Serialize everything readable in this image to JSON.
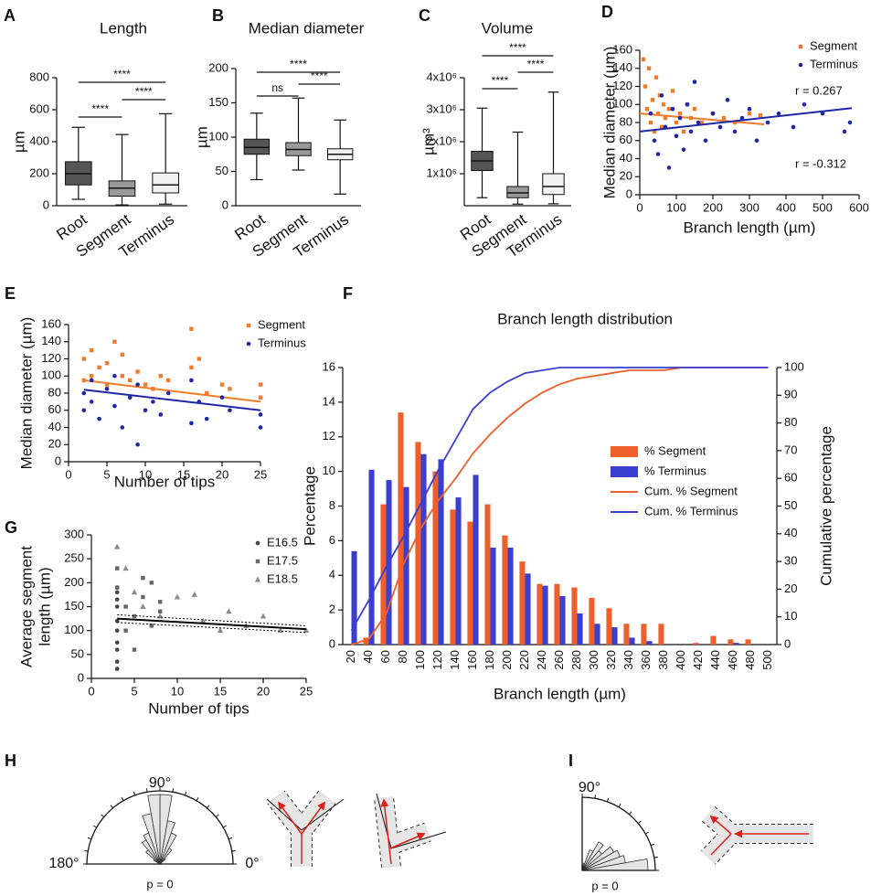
{
  "chart_data": [
    {
      "type": "box",
      "panel": "A",
      "title": "Length",
      "ylabel": "µm",
      "ylim": [
        0,
        800
      ],
      "yticks": [
        0,
        200,
        400,
        600,
        800
      ],
      "boxes": [
        {
          "name": "Root",
          "min": 40,
          "q1": 130,
          "median": 200,
          "q3": 275,
          "max": 490,
          "color": "#555555"
        },
        {
          "name": "Segment",
          "min": 5,
          "q1": 60,
          "median": 110,
          "q3": 155,
          "max": 445,
          "color": "#9a9a9a"
        },
        {
          "name": "Terminus",
          "min": 10,
          "q1": 80,
          "median": 130,
          "q3": 205,
          "max": 575,
          "color": "#f2f2f2"
        }
      ],
      "comparisons": [
        {
          "pair": [
            0,
            1
          ],
          "label": "****"
        },
        {
          "pair": [
            1,
            2
          ],
          "label": "****"
        },
        {
          "pair": [
            0,
            2
          ],
          "label": "****"
        }
      ]
    },
    {
      "type": "box",
      "panel": "B",
      "title": "Median diameter",
      "ylabel": "µm",
      "ylim": [
        0,
        200
      ],
      "yticks": [
        0,
        50,
        100,
        150,
        200
      ],
      "boxes": [
        {
          "name": "Root",
          "min": 38,
          "q1": 75,
          "median": 85,
          "q3": 97,
          "max": 135,
          "color": "#555555"
        },
        {
          "name": "Segment",
          "min": 52,
          "q1": 73,
          "median": 82,
          "q3": 92,
          "max": 157,
          "color": "#9a9a9a"
        },
        {
          "name": "Terminus",
          "min": 17,
          "q1": 67,
          "median": 75,
          "q3": 83,
          "max": 125,
          "color": "#f2f2f2"
        }
      ],
      "comparisons": [
        {
          "pair": [
            0,
            1
          ],
          "label": "ns"
        },
        {
          "pair": [
            1,
            2
          ],
          "label": "****"
        },
        {
          "pair": [
            0,
            2
          ],
          "label": "****"
        }
      ]
    },
    {
      "type": "box",
      "panel": "C",
      "title": "Volume",
      "ylabel": "µm³",
      "ylim": [
        0,
        4000000
      ],
      "yticks": [
        {
          "value": 1000000,
          "label": "1x10⁶"
        },
        {
          "value": 2000000,
          "label": "2x10⁶"
        },
        {
          "value": 3000000,
          "label": "3x10⁶"
        },
        {
          "value": 4000000,
          "label": "4x10⁶"
        }
      ],
      "boxes": [
        {
          "name": "Root",
          "min": 250000,
          "q1": 1100000,
          "median": 1400000,
          "q3": 1700000,
          "max": 3050000,
          "color": "#555555"
        },
        {
          "name": "Segment",
          "min": 50000,
          "q1": 250000,
          "median": 400000,
          "q3": 600000,
          "max": 2300000,
          "color": "#9a9a9a"
        },
        {
          "name": "Terminus",
          "min": 60000,
          "q1": 350000,
          "median": 600000,
          "q3": 1000000,
          "max": 3550000,
          "color": "#f2f2f2"
        }
      ],
      "comparisons": [
        {
          "pair": [
            0,
            1
          ],
          "label": "****"
        },
        {
          "pair": [
            1,
            2
          ],
          "label": "****"
        },
        {
          "pair": [
            0,
            2
          ],
          "label": "****"
        }
      ]
    },
    {
      "type": "scatter",
      "panel": "D",
      "xlabel": "Branch length (µm)",
      "ylabel": "Median diameter (µm)",
      "xlim": [
        0,
        600
      ],
      "xticks": [
        0,
        100,
        200,
        300,
        400,
        500,
        600
      ],
      "ylim": [
        0,
        160
      ],
      "yticks": [
        0,
        20,
        40,
        60,
        80,
        100,
        120,
        140,
        160
      ],
      "series": [
        {
          "name": "Segment",
          "color": "#f07b2a",
          "marker": "square",
          "x": [
            10,
            15,
            20,
            25,
            30,
            35,
            40,
            45,
            50,
            55,
            60,
            65,
            70,
            80,
            90,
            100,
            110,
            120,
            130,
            140,
            150,
            170,
            200,
            230,
            260,
            300,
            330
          ],
          "y": [
            150,
            120,
            95,
            140,
            80,
            105,
            70,
            130,
            90,
            110,
            75,
            100,
            85,
            95,
            115,
            80,
            90,
            70,
            100,
            85,
            95,
            80,
            90,
            85,
            80,
            90,
            88
          ],
          "trend": {
            "x": [
              0,
              340
            ],
            "y": [
              90,
              78
            ]
          }
        },
        {
          "name": "Terminus",
          "color": "#1f27a8",
          "marker": "circle",
          "x": [
            30,
            40,
            50,
            60,
            70,
            80,
            90,
            100,
            110,
            120,
            130,
            140,
            150,
            160,
            180,
            200,
            220,
            240,
            260,
            280,
            300,
            320,
            350,
            380,
            420,
            450,
            500,
            560,
            575
          ],
          "y": [
            90,
            60,
            45,
            110,
            75,
            30,
            95,
            65,
            85,
            50,
            100,
            70,
            125,
            80,
            60,
            90,
            75,
            105,
            70,
            85,
            95,
            60,
            80,
            90,
            75,
            100,
            90,
            70,
            80
          ],
          "trend": {
            "x": [
              0,
              580
            ],
            "y": [
              70,
              96
            ]
          }
        }
      ],
      "annotations": [
        "r = 0.267",
        "r = -0.312"
      ]
    },
    {
      "type": "scatter",
      "panel": "E",
      "xlabel": "Number of tips",
      "ylabel": "Median diameter (µm)",
      "xlim": [
        0,
        25
      ],
      "xticks": [
        0,
        5,
        10,
        15,
        20,
        25
      ],
      "ylim": [
        0,
        160
      ],
      "yticks": [
        0,
        20,
        40,
        60,
        80,
        100,
        120,
        140,
        160
      ],
      "series": [
        {
          "name": "Segment",
          "color": "#f07b2a",
          "marker": "square",
          "x": [
            2,
            2,
            3,
            3,
            4,
            5,
            5,
            6,
            7,
            7,
            8,
            9,
            10,
            11,
            12,
            13,
            16,
            16,
            17,
            18,
            20,
            21,
            25,
            25
          ],
          "y": [
            120,
            95,
            130,
            100,
            110,
            115,
            90,
            140,
            125,
            100,
            95,
            105,
            90,
            85,
            100,
            95,
            155,
            110,
            120,
            80,
            90,
            85,
            75,
            90
          ],
          "trend": {
            "x": [
              2,
              25
            ],
            "y": [
              95,
              70
            ]
          }
        },
        {
          "name": "Terminus",
          "color": "#1f27a8",
          "marker": "circle",
          "x": [
            2,
            2,
            3,
            3,
            4,
            5,
            6,
            6,
            7,
            8,
            9,
            9,
            10,
            11,
            12,
            13,
            16,
            16,
            17,
            18,
            20,
            21,
            25,
            25
          ],
          "y": [
            80,
            60,
            95,
            70,
            50,
            85,
            65,
            100,
            40,
            75,
            20,
            90,
            60,
            70,
            55,
            80,
            95,
            45,
            70,
            50,
            75,
            60,
            40,
            55
          ],
          "trend": {
            "x": [
              2,
              25
            ],
            "y": [
              84,
              60
            ]
          }
        }
      ]
    },
    {
      "type": "barline",
      "panel": "F",
      "title": "Branch length distribution",
      "xlabel": "Branch length (µm)",
      "ylabel": "Percentage",
      "y2label": "Cumulative percentage",
      "categories": [
        "20",
        "40",
        "60",
        "80",
        "100",
        "120",
        "140",
        "160",
        "180",
        "200",
        "220",
        "240",
        "260",
        "280",
        "300",
        "320",
        "340",
        "360",
        "380",
        "400",
        "420",
        "440",
        "460",
        "480",
        "500"
      ],
      "ylim": [
        0,
        16
      ],
      "yticks": [
        0,
        2,
        4,
        6,
        8,
        10,
        12,
        14,
        16
      ],
      "y2lim": [
        0,
        100
      ],
      "y2ticks": [
        0,
        10,
        20,
        30,
        40,
        50,
        60,
        70,
        80,
        90,
        100
      ],
      "series": [
        {
          "name": "% Segment",
          "color": "#ef5f2b",
          "values": [
            0,
            0.4,
            8.1,
            13.4,
            11.7,
            10.0,
            7.8,
            7.1,
            8.1,
            6.3,
            4.8,
            3.5,
            3.5,
            3.3,
            2.7,
            2.1,
            1.2,
            1.2,
            1.2,
            0,
            0.1,
            0.5,
            0.3,
            0.3,
            0
          ]
        },
        {
          "name": "% Terminus",
          "color": "#3a3fd0",
          "values": [
            5.4,
            10.1,
            9.5,
            9.1,
            11.0,
            10.7,
            8.5,
            9.8,
            5.6,
            5.6,
            4.1,
            3.4,
            2.8,
            1.8,
            1.2,
            1.0,
            0.4,
            0.2,
            0,
            0,
            0,
            0,
            0.1,
            0,
            0
          ]
        },
        {
          "name": "Cum. % Segment",
          "color": "#ef5f2b",
          "type": "line",
          "axis": "y2",
          "values": [
            0,
            2,
            11,
            29,
            42,
            52,
            60,
            69,
            76,
            82,
            87,
            91,
            94,
            96,
            97,
            98,
            99,
            99,
            99,
            100,
            100,
            100,
            100,
            100,
            100
          ]
        },
        {
          "name": "Cum. % Terminus",
          "color": "#3a3fd0",
          "type": "line",
          "axis": "y2",
          "values": [
            5,
            16,
            28,
            39,
            51,
            63,
            74,
            85,
            91,
            95,
            98,
            99,
            100,
            100,
            100,
            100,
            100,
            100,
            100,
            100,
            100,
            100,
            100,
            100,
            100
          ]
        }
      ]
    },
    {
      "type": "scatter",
      "panel": "G",
      "xlabel": "Number of tips",
      "ylabel": [
        "Average segment",
        "length (µm)"
      ],
      "xlim": [
        0,
        25
      ],
      "xticks": [
        0,
        5,
        10,
        15,
        20,
        25
      ],
      "ylim": [
        0,
        300
      ],
      "yticks": [
        0,
        50,
        100,
        150,
        200,
        250,
        300
      ],
      "series": [
        {
          "name": "E16.5",
          "color": "#444444",
          "marker": "circle",
          "x": [
            3,
            3,
            3,
            3,
            3,
            3,
            3,
            3,
            3,
            3
          ],
          "y": [
            20,
            35,
            60,
            75,
            100,
            120,
            150,
            165,
            180,
            190
          ]
        },
        {
          "name": "E17.5",
          "color": "#666666",
          "marker": "square",
          "x": [
            3,
            3,
            4,
            4,
            5,
            5,
            6,
            6,
            7,
            7,
            8,
            8
          ],
          "y": [
            230,
            190,
            150,
            100,
            130,
            60,
            170,
            210,
            200,
            110,
            160,
            140
          ]
        },
        {
          "name": "E18.5",
          "color": "#8a8a8a",
          "marker": "triangle",
          "x": [
            3,
            4,
            5,
            6,
            8,
            10,
            12,
            13,
            15,
            16,
            18,
            20,
            22,
            25
          ],
          "y": [
            275,
            230,
            180,
            150,
            130,
            170,
            175,
            120,
            100,
            140,
            110,
            130,
            100,
            100
          ]
        }
      ],
      "fit": {
        "x": [
          3,
          25
        ],
        "y": [
          125,
          103
        ],
        "upper": [
          133,
          110
        ],
        "lower": [
          117,
          96
        ]
      }
    }
  ],
  "diagrams": [
    {
      "panel": "H",
      "labels": [
        "90°",
        "180°",
        "0°"
      ],
      "p_label": "p = 0",
      "rose_values": [
        0,
        0,
        0,
        0,
        0.1,
        0.25,
        0.45,
        0.6,
        0.95,
        0.95,
        0.7,
        0.45,
        0.38,
        0.25,
        0.1,
        0,
        0,
        0
      ]
    },
    {
      "panel": "I",
      "labels": [
        "90°"
      ],
      "p_label": "p = 0",
      "rose_values": [
        0.9,
        0.6,
        0.55,
        0.5,
        0.35,
        0.45,
        0.3,
        0.1,
        0.05
      ]
    }
  ]
}
